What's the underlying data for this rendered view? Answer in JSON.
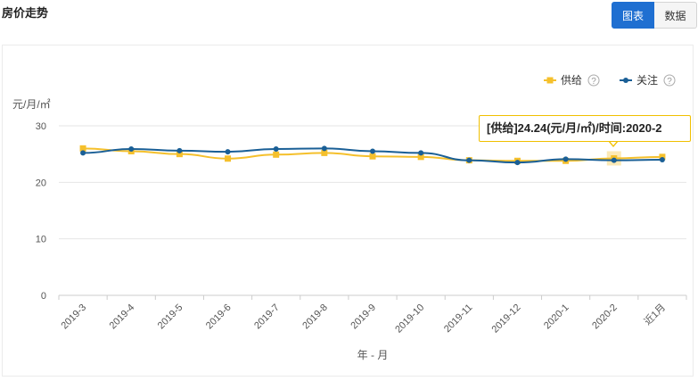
{
  "header": {
    "title": "房价走势"
  },
  "toggle": {
    "chart_label": "图表",
    "data_label": "数据"
  },
  "tooltip": {
    "series_label": "[供给]",
    "value": "24.24",
    "unit": "(元/月/㎡)",
    "time_prefix": "/时间:",
    "time": "2020-2"
  },
  "colors": {
    "supply": "#f5c02c",
    "attention": "#1a5f96",
    "grid": "#e6e6e6",
    "axis": "#cccccc"
  },
  "chart_data": {
    "type": "line",
    "title": "房价走势",
    "ylabel": "元/月/㎡",
    "xlabel": "年 - 月",
    "ylim": [
      0,
      30
    ],
    "yticks": [
      0,
      10,
      20,
      30
    ],
    "categories": [
      "2019-3",
      "2019-4",
      "2019-5",
      "2019-6",
      "2019-7",
      "2019-8",
      "2019-9",
      "2019-10",
      "2019-11",
      "2019-12",
      "2020-1",
      "2020-2",
      "近1月"
    ],
    "series": [
      {
        "name": "供给",
        "color": "#f5c02c",
        "marker": "square",
        "values": [
          26.0,
          25.5,
          25.0,
          24.2,
          24.9,
          25.2,
          24.6,
          24.5,
          23.9,
          23.8,
          23.8,
          24.24,
          24.5
        ]
      },
      {
        "name": "关注",
        "color": "#1a5f96",
        "marker": "circle",
        "values": [
          25.2,
          25.9,
          25.6,
          25.4,
          25.9,
          26.0,
          25.5,
          25.2,
          23.9,
          23.5,
          24.1,
          23.9,
          24.0
        ]
      }
    ],
    "legend": {
      "position": "top-right",
      "help_symbol": "?"
    },
    "highlight": {
      "series": "供给",
      "category": "2020-2"
    }
  }
}
